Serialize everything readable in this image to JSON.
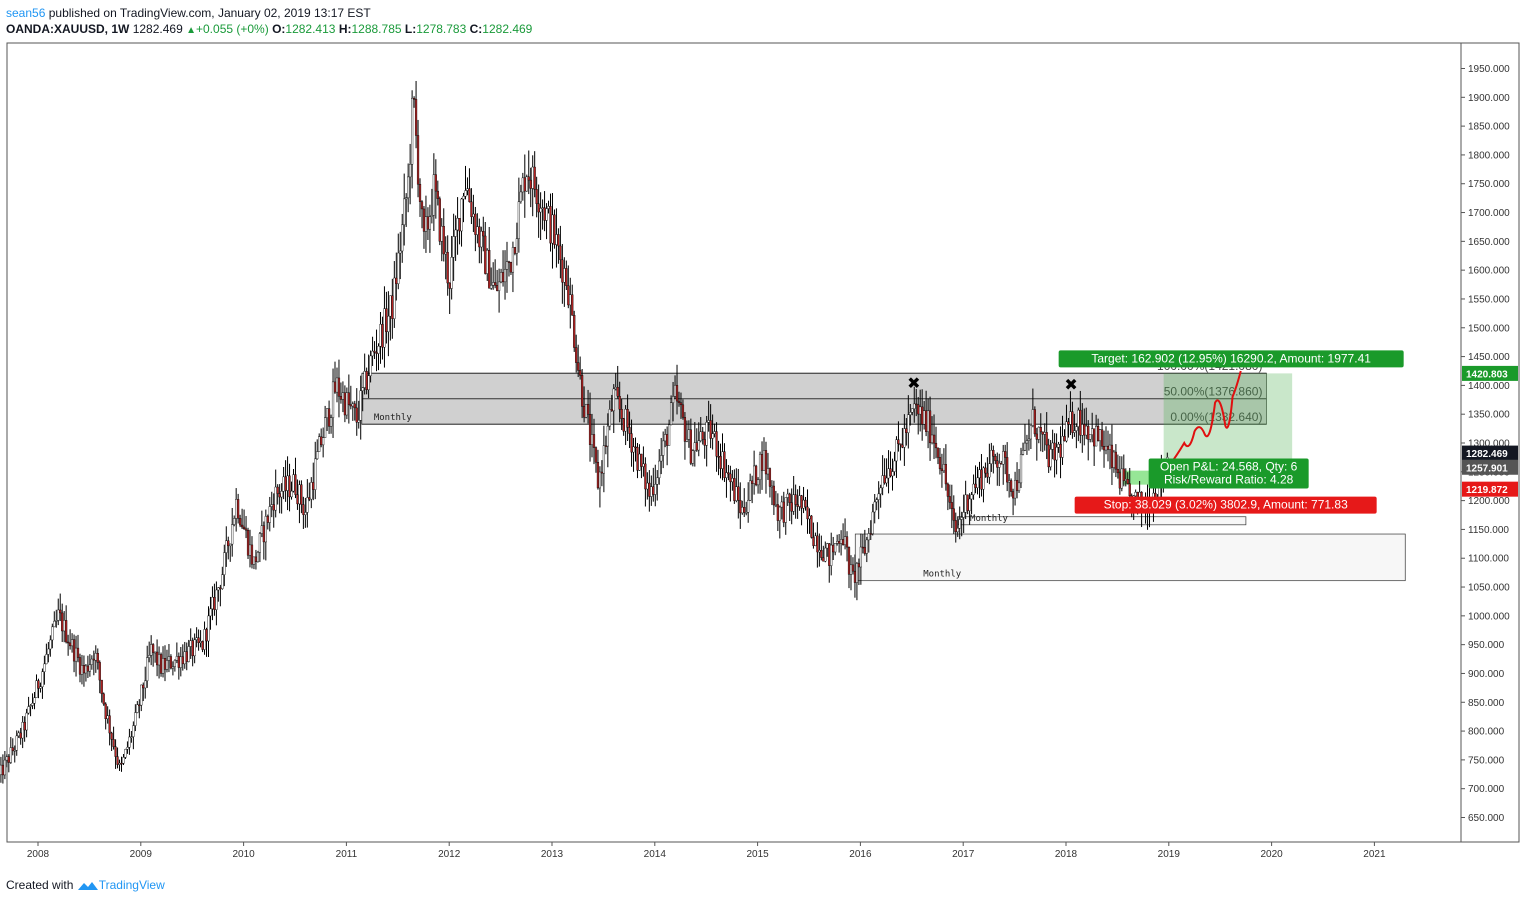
{
  "header": {
    "author": "sean56",
    "published_text": "published on TradingView.com, January 02, 2019 13:17 EST",
    "symbol": "OANDA:XAUUSD, 1W",
    "last": "1282.469",
    "change": "+0.055 (+0%)",
    "o_label": "O:",
    "o_val": "1282.413",
    "h_label": "H:",
    "h_val": "1288.785",
    "l_label": "L:",
    "l_val": "1278.783",
    "c_label": "C:",
    "c_val": "1282.469"
  },
  "footer": {
    "created_with": "Created with",
    "brand": "TradingView"
  },
  "colors": {
    "up_candle": "#ffffff",
    "down_candle": "#b22222",
    "wick": "#000000",
    "zone": "#c8c8c8",
    "target": "#1a9a2a",
    "stop": "#e61919",
    "forecast": "#e01010",
    "axis_text": "#333333"
  },
  "chart_data": {
    "type": "candlestick",
    "title": "OANDA:XAUUSD, 1W",
    "ylim": [
      614,
      1990
    ],
    "x_range_years": [
      2007.6,
      2021.75
    ],
    "y_ticks": [
      650,
      700,
      750,
      800,
      850,
      900,
      950,
      1000,
      1050,
      1100,
      1150,
      1200,
      1250,
      1300,
      1350,
      1400,
      1450,
      1500,
      1550,
      1600,
      1650,
      1700,
      1750,
      1800,
      1850,
      1900,
      1950
    ],
    "y_tick_labels": [
      "650.000",
      "700.000",
      "750.000",
      "800.000",
      "850.000",
      "900.000",
      "950.000",
      "1000.000",
      "1050.000",
      "1100.000",
      "1150.000",
      "1200.000",
      "1250.000",
      "1300.000",
      "1350.000",
      "1400.000",
      "1450.000",
      "1500.000",
      "1550.000",
      "1600.000",
      "1650.000",
      "1700.000",
      "1750.000",
      "1800.000",
      "1850.000",
      "1900.000",
      "1950.000"
    ],
    "x_ticks": [
      "2008",
      "2009",
      "2010",
      "2011",
      "2012",
      "2013",
      "2014",
      "2015",
      "2016",
      "2017",
      "2018",
      "2019",
      "2020",
      "2021"
    ],
    "price_path": [
      [
        2007.62,
        720
      ],
      [
        2007.85,
        800
      ],
      [
        2008.0,
        880
      ],
      [
        2008.2,
        1000
      ],
      [
        2008.45,
        900
      ],
      [
        2008.55,
        940
      ],
      [
        2008.65,
        840
      ],
      [
        2008.8,
        730
      ],
      [
        2008.95,
        820
      ],
      [
        2009.1,
        940
      ],
      [
        2009.2,
        910
      ],
      [
        2009.4,
        930
      ],
      [
        2009.6,
        950
      ],
      [
        2009.8,
        1080
      ],
      [
        2009.93,
        1200
      ],
      [
        2010.1,
        1090
      ],
      [
        2010.3,
        1210
      ],
      [
        2010.5,
        1230
      ],
      [
        2010.6,
        1180
      ],
      [
        2010.75,
        1300
      ],
      [
        2010.9,
        1400
      ],
      [
        2011.1,
        1340
      ],
      [
        2011.25,
        1450
      ],
      [
        2011.45,
        1540
      ],
      [
        2011.6,
        1750
      ],
      [
        2011.65,
        1900
      ],
      [
        2011.75,
        1640
      ],
      [
        2011.85,
        1740
      ],
      [
        2012.0,
        1580
      ],
      [
        2012.15,
        1760
      ],
      [
        2012.3,
        1650
      ],
      [
        2012.45,
        1560
      ],
      [
        2012.6,
        1620
      ],
      [
        2012.75,
        1780
      ],
      [
        2012.9,
        1720
      ],
      [
        2013.0,
        1670
      ],
      [
        2013.15,
        1580
      ],
      [
        2013.28,
        1400
      ],
      [
        2013.45,
        1230
      ],
      [
        2013.6,
        1380
      ],
      [
        2013.75,
        1320
      ],
      [
        2013.95,
        1210
      ],
      [
        2014.1,
        1300
      ],
      [
        2014.2,
        1380
      ],
      [
        2014.35,
        1290
      ],
      [
        2014.55,
        1320
      ],
      [
        2014.7,
        1250
      ],
      [
        2014.85,
        1180
      ],
      [
        2015.05,
        1280
      ],
      [
        2015.2,
        1180
      ],
      [
        2015.4,
        1200
      ],
      [
        2015.55,
        1140
      ],
      [
        2015.7,
        1100
      ],
      [
        2015.82,
        1150
      ],
      [
        2015.92,
        1060
      ],
      [
        2016.05,
        1120
      ],
      [
        2016.2,
        1240
      ],
      [
        2016.35,
        1280
      ],
      [
        2016.53,
        1360
      ],
      [
        2016.7,
        1320
      ],
      [
        2016.8,
        1260
      ],
      [
        2016.92,
        1140
      ],
      [
        2017.05,
        1210
      ],
      [
        2017.2,
        1250
      ],
      [
        2017.35,
        1280
      ],
      [
        2017.5,
        1220
      ],
      [
        2017.68,
        1340
      ],
      [
        2017.85,
        1270
      ],
      [
        2017.97,
        1300
      ],
      [
        2018.08,
        1345
      ],
      [
        2018.2,
        1330
      ],
      [
        2018.35,
        1300
      ],
      [
        2018.5,
        1250
      ],
      [
        2018.62,
        1200
      ],
      [
        2018.78,
        1190
      ],
      [
        2018.9,
        1230
      ],
      [
        2019.0,
        1282
      ]
    ],
    "zones": [
      {
        "label": "Monthly",
        "from_year": 2011.15,
        "to_year": 2019.95,
        "top": 1421.08,
        "bottom": 1332.64
      },
      {
        "label": "Monthly",
        "from_year": 2016.95,
        "to_year": 2019.75,
        "top": 1172,
        "bottom": 1158
      },
      {
        "label": "Monthly",
        "from_year": 2015.95,
        "to_year": 2021.3,
        "top": 1142,
        "bottom": 1061
      }
    ],
    "fib_levels": [
      {
        "label": "100.00%(1421.080)",
        "value": 1421.08
      },
      {
        "label": "50.00%(1376.860)",
        "value": 1376.86
      },
      {
        "label": "0.00%(1332.640)",
        "value": 1332.64
      }
    ],
    "markers": [
      {
        "year": 2016.52,
        "price": 1395,
        "symbol": "✖"
      },
      {
        "year": 2018.05,
        "price": 1392,
        "symbol": "✖"
      }
    ],
    "position": {
      "entry": 1257.901,
      "target": 1420.803,
      "stop": 1219.872,
      "from_year": 2018.95,
      "to_year": 2020.2,
      "target_label": "Target: 162.902 (12.95%) 16290.2, Amount: 1977.41",
      "pnl_label": "Open P&L: 24.568, Qty: 6",
      "rr_label": "Risk/Reward Ratio: 4.28",
      "stop_label": "Stop: 38.029 (3.02%) 3802.9, Amount: 771.83"
    },
    "forecast_path": [
      [
        2019.0,
        1260
      ],
      [
        2019.15,
        1300
      ],
      [
        2019.25,
        1320
      ],
      [
        2019.35,
        1315
      ],
      [
        2019.45,
        1370
      ],
      [
        2019.55,
        1330
      ],
      [
        2019.62,
        1380
      ],
      [
        2019.7,
        1425
      ]
    ],
    "price_labels": [
      {
        "label": "1420.803",
        "value": 1420.803,
        "color": "#1a9a2a"
      },
      {
        "label": "1282.469",
        "value": 1282.469,
        "color": "#131722"
      },
      {
        "label": "1257.901",
        "value": 1257.901,
        "color": "#555555"
      },
      {
        "label": "1219.872",
        "value": 1219.872,
        "color": "#e61919"
      }
    ]
  }
}
